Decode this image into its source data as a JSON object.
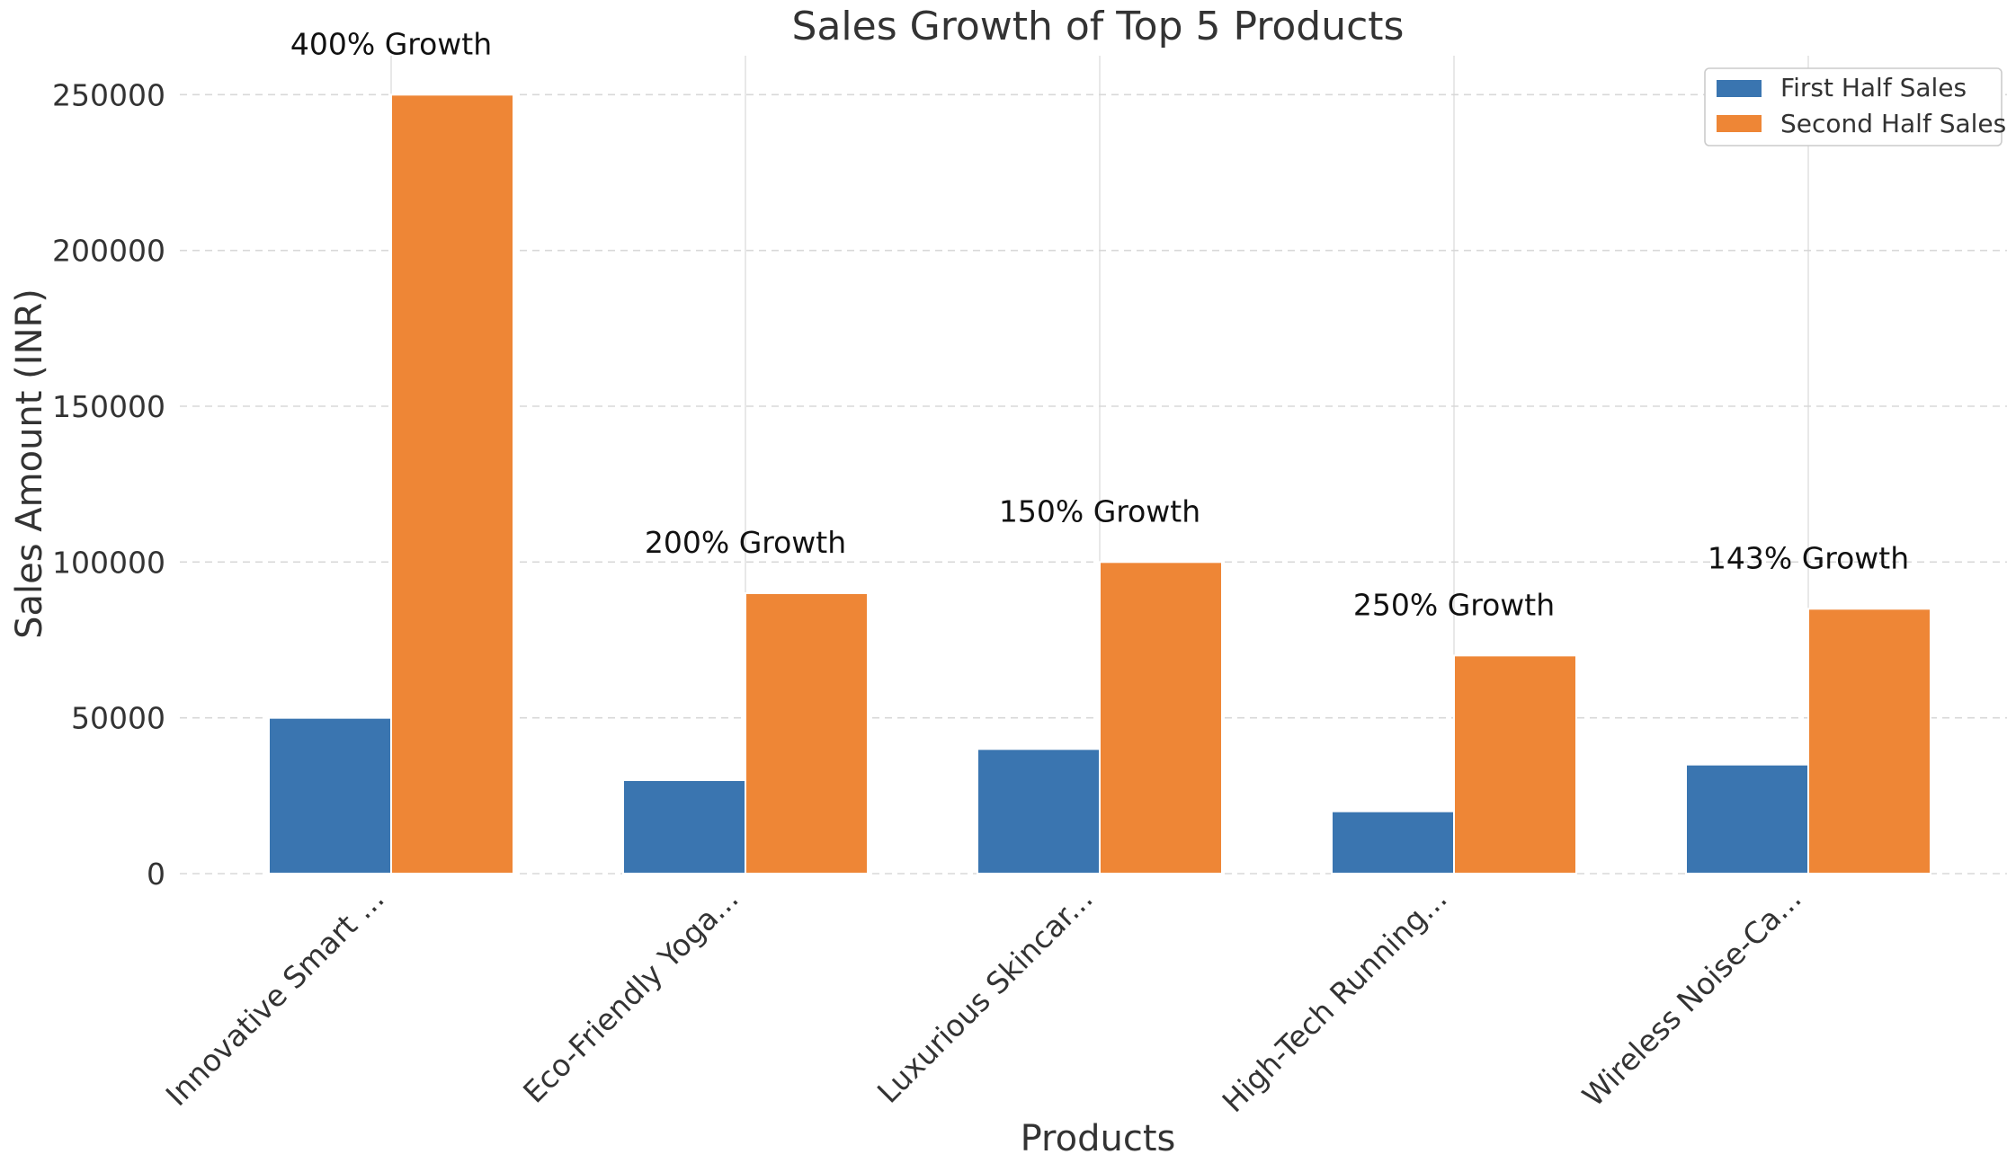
{
  "chart_data": {
    "type": "bar",
    "title": "Sales Growth of Top 5 Products",
    "xlabel": "Products",
    "ylabel": "Sales Amount (INR)",
    "ylim": [
      0,
      262500
    ],
    "yticks": [
      0,
      50000,
      100000,
      150000,
      200000,
      250000
    ],
    "grid": true,
    "legend_position": "top-right",
    "categories": [
      "Innovative Smart ...",
      "Eco-Friendly Yoga...",
      "Luxurious Skincar...",
      "High-Tech Running...",
      "Wireless Noise-Ca..."
    ],
    "series": [
      {
        "name": "First Half Sales",
        "color": "#3a75b0",
        "values": [
          50000,
          30000,
          40000,
          20000,
          35000
        ]
      },
      {
        "name": "Second Half Sales",
        "color": "#ee8636",
        "values": [
          250000,
          90000,
          100000,
          70000,
          85000
        ]
      }
    ],
    "annotations": [
      "400% Growth",
      "200% Growth",
      "150% Growth",
      "250% Growth",
      "143% Growth"
    ]
  }
}
